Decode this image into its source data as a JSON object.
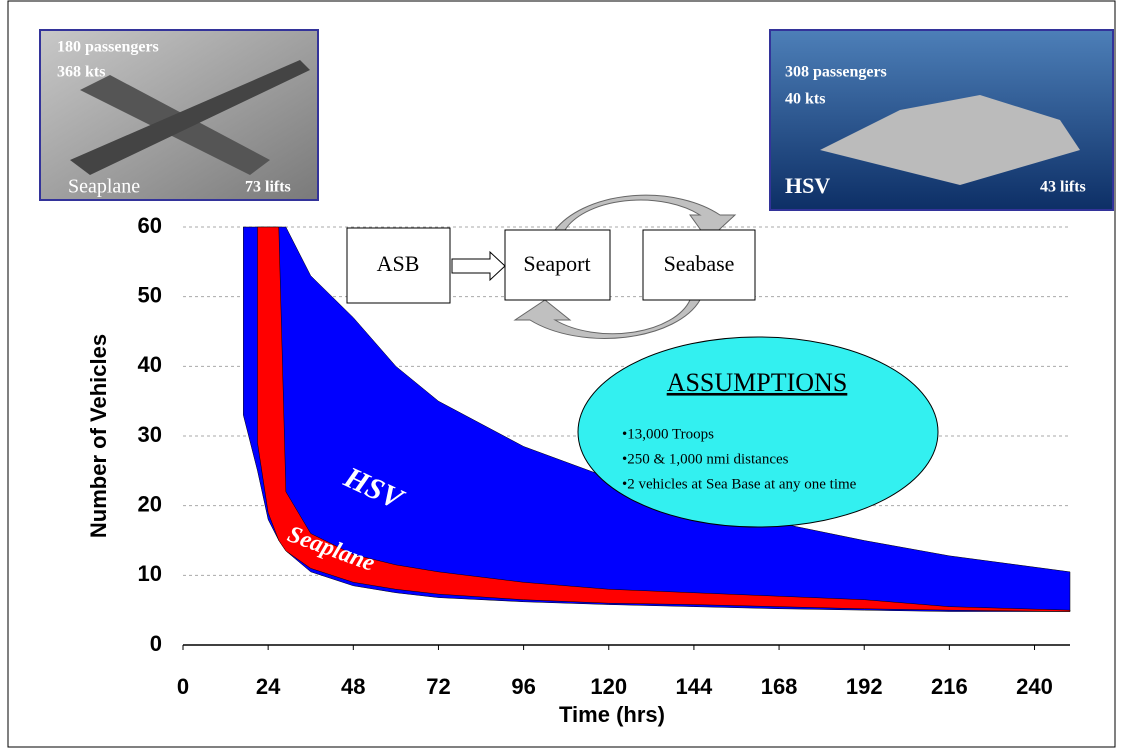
{
  "chart_data": {
    "type": "band",
    "x_label": "Time (hrs)",
    "y_label": "Number of Vehicles",
    "x": [
      17,
      21,
      24,
      27,
      29,
      36,
      48,
      60,
      72,
      96,
      120,
      144,
      168,
      192,
      216,
      250
    ],
    "series": [
      {
        "name": "HSV",
        "color": "#0000ff",
        "upper": [
          60,
          60,
          60,
          60,
          60,
          53,
          47,
          40,
          35,
          28.5,
          24,
          20.5,
          17.5,
          15,
          12.8,
          10.5
        ],
        "lower": [
          33,
          25,
          18,
          15,
          13.5,
          10.5,
          8.5,
          7.5,
          6.8,
          6.2,
          5.8,
          5.5,
          5.2,
          5,
          4.8,
          4.8
        ]
      },
      {
        "name": "Seaplane",
        "color": "#ff0000",
        "upper": [
          null,
          60,
          60,
          60,
          22,
          16,
          13,
          11.5,
          10.5,
          9,
          8,
          7.5,
          7,
          6.5,
          5.5,
          5
        ],
        "lower": [
          null,
          29,
          19,
          15,
          13.5,
          11,
          9,
          8,
          7.3,
          6.5,
          6,
          5.8,
          5.5,
          5.2,
          5,
          4.8
        ]
      }
    ],
    "xlim": [
      0,
      250
    ],
    "xticks": [
      0,
      24,
      48,
      72,
      96,
      120,
      144,
      168,
      192,
      216,
      240
    ],
    "ylim": [
      0,
      60
    ],
    "yticks": [
      0,
      10,
      20,
      30,
      40,
      50,
      60
    ],
    "grid": true
  },
  "insets": [
    {
      "lines": [
        "180 passengers",
        "368 kts"
      ],
      "name": "Seaplane",
      "lifts": "73 lifts"
    },
    {
      "lines": [
        "308 passengers",
        "40 kts"
      ],
      "name": "HSV",
      "lifts": "43 lifts"
    }
  ],
  "diagram": {
    "nodes": [
      "ASB",
      "Seaport",
      "Seabase"
    ]
  },
  "assumptions": {
    "title": "ASSUMPTIONS",
    "items": [
      "•13,000 Troops",
      "•250 & 1,000 nmi distances",
      "•2 vehicles at Sea Base at any one time"
    ]
  }
}
